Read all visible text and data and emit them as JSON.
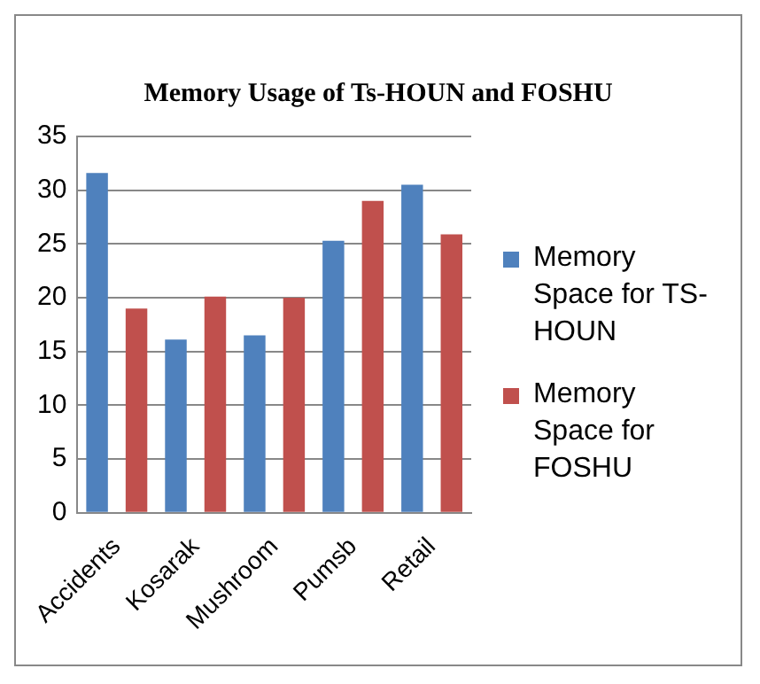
{
  "chart_data": {
    "type": "bar",
    "title": "Memory Usage of Ts-HOUN and FOSHU",
    "categories": [
      "Accidents",
      "Kosarak",
      "Mushroom",
      "Pumsb",
      "Retail"
    ],
    "series": [
      {
        "name": "Memory Space for TS-HOUN",
        "color": "#4f81bd",
        "values": [
          31.6,
          16.1,
          16.5,
          25.3,
          30.5
        ]
      },
      {
        "name": "Memory Space for FOSHU",
        "color": "#c0504d",
        "values": [
          19.0,
          20.1,
          20.0,
          29.0,
          25.9
        ]
      }
    ],
    "ylim": [
      0,
      35
    ],
    "yticks": [
      0,
      5,
      10,
      15,
      20,
      25,
      30,
      35
    ],
    "grid": "y",
    "legend": "right"
  }
}
